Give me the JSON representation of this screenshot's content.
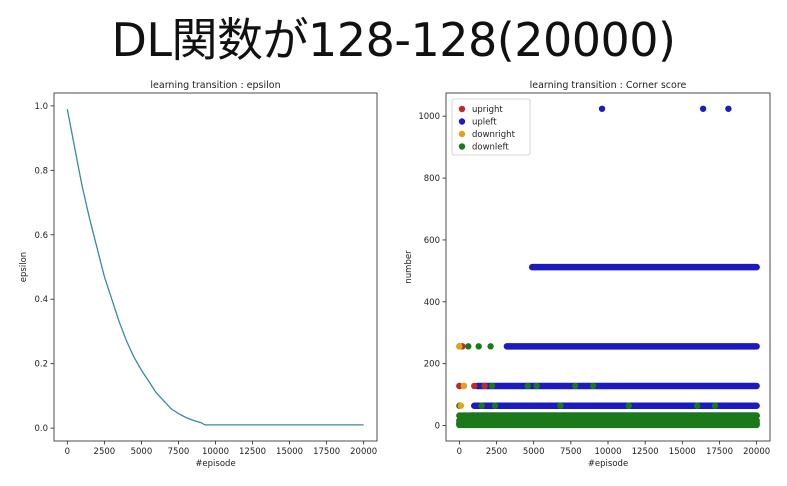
{
  "slide": {
    "title": "DL関数が128-128(20000)"
  },
  "chart_data": [
    {
      "type": "line",
      "title": "learning transition : epsilon",
      "xlabel": "#episode",
      "ylabel": "epsilon",
      "xlim": [
        -900,
        20900
      ],
      "ylim": [
        -0.04,
        1.04
      ],
      "xticks": [
        0,
        2500,
        5000,
        7500,
        10000,
        12500,
        15000,
        17500,
        20000
      ],
      "yticks": [
        0.0,
        0.2,
        0.4,
        0.6,
        0.8,
        1.0
      ],
      "series": [
        {
          "color": "#3a8a9e",
          "x": [
            0,
            250,
            500,
            750,
            1000,
            1500,
            2000,
            2500,
            3000,
            3500,
            4000,
            4500,
            5000,
            5500,
            6000,
            6500,
            7000,
            7500,
            8000,
            8500,
            9000,
            9300,
            10000,
            12500,
            15000,
            17500,
            20000
          ],
          "y": [
            0.99,
            0.93,
            0.87,
            0.81,
            0.75,
            0.65,
            0.56,
            0.47,
            0.4,
            0.33,
            0.27,
            0.22,
            0.18,
            0.145,
            0.11,
            0.085,
            0.06,
            0.045,
            0.033,
            0.024,
            0.017,
            0.01,
            0.01,
            0.01,
            0.01,
            0.01,
            0.01
          ]
        }
      ],
      "grid": false
    },
    {
      "type": "scatter",
      "title": "learning transition : Corner score",
      "xlabel": "#episode",
      "ylabel": "number",
      "xlim": [
        -900,
        20900
      ],
      "ylim": [
        -50,
        1075
      ],
      "xticks": [
        0,
        2500,
        5000,
        7500,
        10000,
        12500,
        15000,
        17500,
        20000
      ],
      "yticks": [
        0,
        200,
        400,
        600,
        800,
        1000
      ],
      "legend_position": "top-left",
      "series": [
        {
          "name": "upright",
          "color": "#c0282a",
          "points": [
            [
              1000,
              128
            ],
            [
              1700,
              128
            ],
            [
              200,
              256
            ],
            [
              0,
              128
            ]
          ]
        },
        {
          "name": "upleft",
          "color": "#1b1bbf",
          "points": [
            [
              9600,
              1024
            ],
            [
              16400,
              1024
            ],
            [
              18100,
              1024
            ]
          ],
          "bands": [
            {
              "y": 512,
              "x_from": 4900,
              "x_to": 20000
            },
            {
              "y": 256,
              "x_from": 3200,
              "x_to": 20000
            },
            {
              "y": 128,
              "x_from": 1200,
              "x_to": 20000
            },
            {
              "y": 64,
              "x_from": 1000,
              "x_to": 20000
            },
            {
              "y": 32,
              "x_from": 800,
              "x_to": 20000
            }
          ]
        },
        {
          "name": "downright",
          "color": "#e6a21e",
          "points": [
            [
              0,
              256
            ],
            [
              300,
              128
            ],
            [
              100,
              64
            ]
          ]
        },
        {
          "name": "downleft",
          "color": "#1a7a1a",
          "points": [
            [
              0,
              256
            ],
            [
              600,
              256
            ],
            [
              1300,
              256
            ],
            [
              2100,
              256
            ],
            [
              0,
              128
            ],
            [
              300,
              128
            ],
            [
              2200,
              128
            ],
            [
              5200,
              128
            ],
            [
              9000,
              128
            ],
            [
              4600,
              128
            ],
            [
              7800,
              128
            ],
            [
              0,
              64
            ],
            [
              1500,
              64
            ],
            [
              2400,
              64
            ],
            [
              6800,
              64
            ],
            [
              11400,
              64
            ],
            [
              16000,
              64
            ],
            [
              17200,
              64
            ]
          ],
          "bands": [
            {
              "y": 32,
              "x_from": 0,
              "x_to": 20000
            },
            {
              "y": 16,
              "x_from": 0,
              "x_to": 20000
            },
            {
              "y": 8,
              "x_from": 0,
              "x_to": 20000
            },
            {
              "y": 4,
              "x_from": 0,
              "x_to": 20000
            },
            {
              "y": 2,
              "x_from": 0,
              "x_to": 20000
            }
          ]
        }
      ],
      "grid": false
    }
  ]
}
